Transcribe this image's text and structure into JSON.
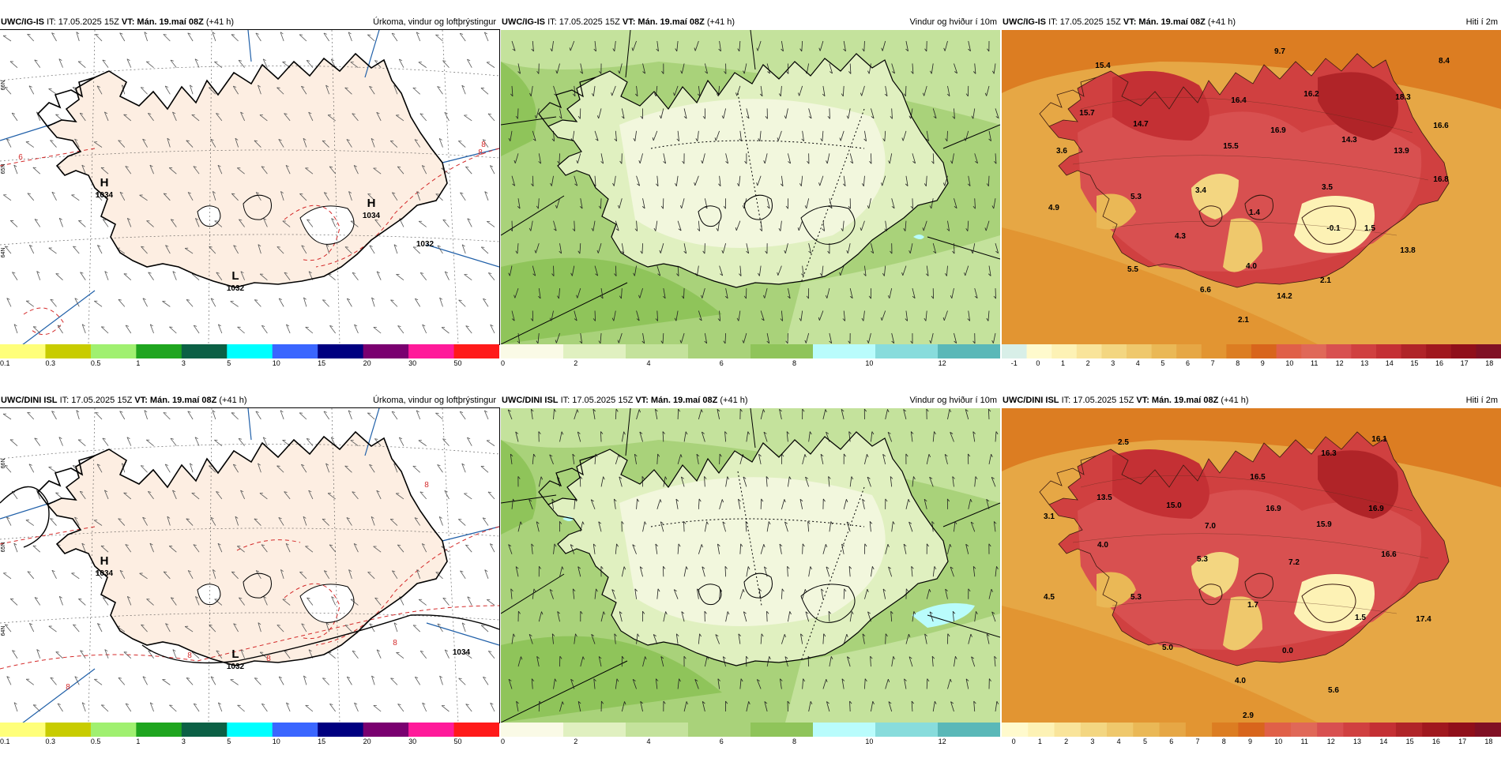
{
  "top_row": {
    "p1": {
      "model": "UWC/IG-IS",
      "it": "IT: 17.05.2025 15Z",
      "vt_label": "VT:",
      "vt": "Mán. 19.maí 08Z",
      "lead": "(+41 h)",
      "product": "Úrkoma, vindur og loftþrýstingur",
      "pressure_labels": [
        {
          "type": "H",
          "value": "1034"
        },
        {
          "type": "H",
          "value": "1034"
        },
        {
          "type": "L",
          "value": "1032"
        },
        {
          "type": "",
          "value": "1032"
        }
      ],
      "contour_labels": [
        "6",
        "8",
        "8"
      ],
      "lat_labels": [
        "66N",
        "65N",
        "64N"
      ]
    },
    "p2": {
      "model": "UWC/IG-IS",
      "it": "IT: 17.05.2025 15Z",
      "vt_label": "VT:",
      "vt": "Mán. 19.maí 08Z",
      "lead": "(+41 h)",
      "product": "Vindur og hviður í 10m"
    },
    "p3": {
      "model": "UWC/IG-IS",
      "it": "IT: 17.05.2025 15Z",
      "vt_label": "VT:",
      "vt": "Mán. 19.maí 08Z",
      "lead": "(+41 h)",
      "product": "Hiti í 2m",
      "temp_labels": [
        "15.4",
        "9.7",
        "8.4",
        "15.7",
        "14.7",
        "16.4",
        "16.2",
        "18.3",
        "3.6",
        "15.5",
        "16.9",
        "14.3",
        "13.9",
        "16.6",
        "16.8",
        "5.3",
        "3.4",
        "3.5",
        "4.9",
        "1.4",
        "4.3",
        "-0.1",
        "1.5",
        "13.8",
        "5.5",
        "4.0",
        "2.1",
        "6.6",
        "14.2",
        "2.1"
      ]
    }
  },
  "bottom_row": {
    "p1": {
      "model": "UWC/DINI ISL",
      "it": "IT: 17.05.2025 15Z",
      "vt_label": "VT:",
      "vt": "Mán. 19.maí 08Z",
      "lead": "(+41 h)",
      "product": "Úrkoma, vindur og loftþrýstingur",
      "pressure_labels": [
        {
          "type": "H",
          "value": "1034"
        },
        {
          "type": "L",
          "value": "1032"
        },
        {
          "type": "",
          "value": "1034"
        }
      ],
      "contour_labels": [
        "8",
        "8",
        "8",
        "8",
        "8"
      ],
      "lat_labels": [
        "66N",
        "65N",
        "64N"
      ]
    },
    "p2": {
      "model": "UWC/DINI ISL",
      "it": "IT: 17.05.2025 15Z",
      "vt_label": "VT:",
      "vt": "Mán. 19.maí 08Z",
      "lead": "(+41 h)",
      "product": "Vindur og hviður í 10m"
    },
    "p3": {
      "model": "UWC/DINI ISL",
      "it": "IT: 17.05.2025 15Z",
      "vt_label": "VT:",
      "vt": "Mán. 19.maí 08Z",
      "lead": "(+41 h)",
      "product": "Hiti í 2m",
      "temp_labels": [
        "2.5",
        "16.3",
        "16.1",
        "13.5",
        "15.0",
        "16.5",
        "16.9",
        "16.9",
        "3.1",
        "7.0",
        "15.9",
        "4.0",
        "16.6",
        "5.3",
        "7.2",
        "4.5",
        "5.3",
        "1.7",
        "1.5",
        "17.4",
        "5.0",
        "0.0",
        "4.0",
        "5.6",
        "2.9"
      ]
    }
  },
  "legends": {
    "precip": {
      "labels": [
        "0.1",
        "0.3",
        "0.5",
        "1",
        "3",
        "5",
        "10",
        "15",
        "20",
        "30",
        "50"
      ],
      "colors": [
        "#ffff7a",
        "#c8cc00",
        "#a0f070",
        "#1fa51f",
        "#0b6045",
        "#00ffff",
        "#3a66ff",
        "#000080",
        "#7a0070",
        "#ff1a9a",
        "#ff1a1a"
      ]
    },
    "wind": {
      "labels": [
        "0",
        "2",
        "4",
        "6",
        "8",
        "10",
        "12"
      ],
      "colors": [
        "#fafae6",
        "#e0f0c0",
        "#c4e29c",
        "#a9d27a",
        "#8fc45a",
        "#b9fcfc",
        "#88dcdc",
        "#5ab8b8"
      ]
    },
    "temp_top": {
      "labels": [
        "-1",
        "0",
        "1",
        "2",
        "3",
        "4",
        "5",
        "6",
        "7",
        "8",
        "9",
        "10",
        "11",
        "12",
        "13",
        "14",
        "15",
        "16",
        "17",
        "18"
      ],
      "colors": [
        "#d8efe8",
        "#fffacd",
        "#fdf2b5",
        "#f9e49a",
        "#f3d681",
        "#efc86c",
        "#eab856",
        "#e6a745",
        "#e29532",
        "#dc7d22",
        "#d8651c",
        "#e06048",
        "#e06858",
        "#d85050",
        "#d04040",
        "#c43034",
        "#b02428",
        "#a0181e",
        "#900f1a",
        "#801024"
      ]
    },
    "temp_bottom": {
      "labels": [
        "0",
        "1",
        "2",
        "3",
        "4",
        "5",
        "6",
        "7",
        "8",
        "9",
        "10",
        "11",
        "12",
        "13",
        "14",
        "15",
        "16",
        "17",
        "18"
      ],
      "colors": [
        "#fffacd",
        "#fdf2b5",
        "#f9e49a",
        "#f3d681",
        "#efc86c",
        "#eab856",
        "#e6a745",
        "#e29532",
        "#dc7d22",
        "#d8651c",
        "#e06048",
        "#e06858",
        "#d85050",
        "#d04040",
        "#c43034",
        "#b02428",
        "#a0181e",
        "#900f1a",
        "#801024"
      ]
    }
  }
}
